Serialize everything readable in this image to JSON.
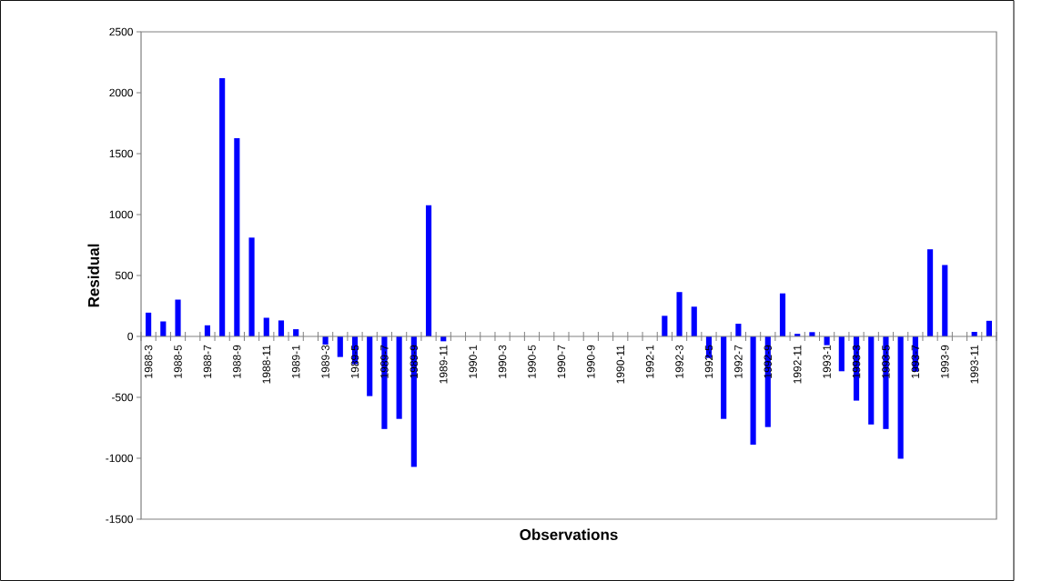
{
  "chart_data": {
    "type": "bar",
    "xlabel": "Observations",
    "ylabel": "Residual",
    "color": "#0000ff",
    "categories": [
      "1988-3",
      null,
      "1988-5",
      null,
      "1988-7",
      null,
      "1988-9",
      null,
      "1988-11",
      null,
      "1989-1",
      null,
      "1989-3",
      null,
      "1989-5",
      null,
      "1989-7",
      null,
      "1989-9",
      null,
      "1989-11",
      null,
      "1990-1",
      null,
      "1990-3",
      null,
      "1990-5",
      null,
      "1990-7",
      null,
      "1990-9",
      null,
      "1990-11",
      null,
      "1992-1",
      null,
      "1992-3",
      null,
      "1992-5",
      null,
      "1992-7",
      null,
      "1992-9",
      null,
      "1992-11",
      null,
      "1993-1",
      null,
      "1993-3",
      null,
      "1993-5",
      null,
      "1993-7",
      null,
      "1993-9",
      null,
      "1993-11",
      null
    ],
    "values": [
      195,
      123,
      302,
      null,
      91,
      2120,
      1627,
      811,
      153,
      131,
      59,
      null,
      -67,
      -169,
      -228,
      -490,
      -760,
      -677,
      -1071,
      1076,
      -40,
      null,
      null,
      null,
      null,
      null,
      null,
      null,
      null,
      null,
      null,
      null,
      null,
      null,
      null,
      169,
      364,
      244,
      -177,
      -677,
      104,
      -889,
      -744,
      353,
      21,
      35,
      -72,
      -286,
      -527,
      -723,
      -760,
      -1004,
      -290,
      715,
      586,
      null,
      37,
      128
    ],
    "ylim": [
      -1500,
      2500
    ],
    "yticks": [
      -1500,
      -1000,
      -500,
      0,
      500,
      1000,
      1500,
      2000,
      2500
    ]
  }
}
